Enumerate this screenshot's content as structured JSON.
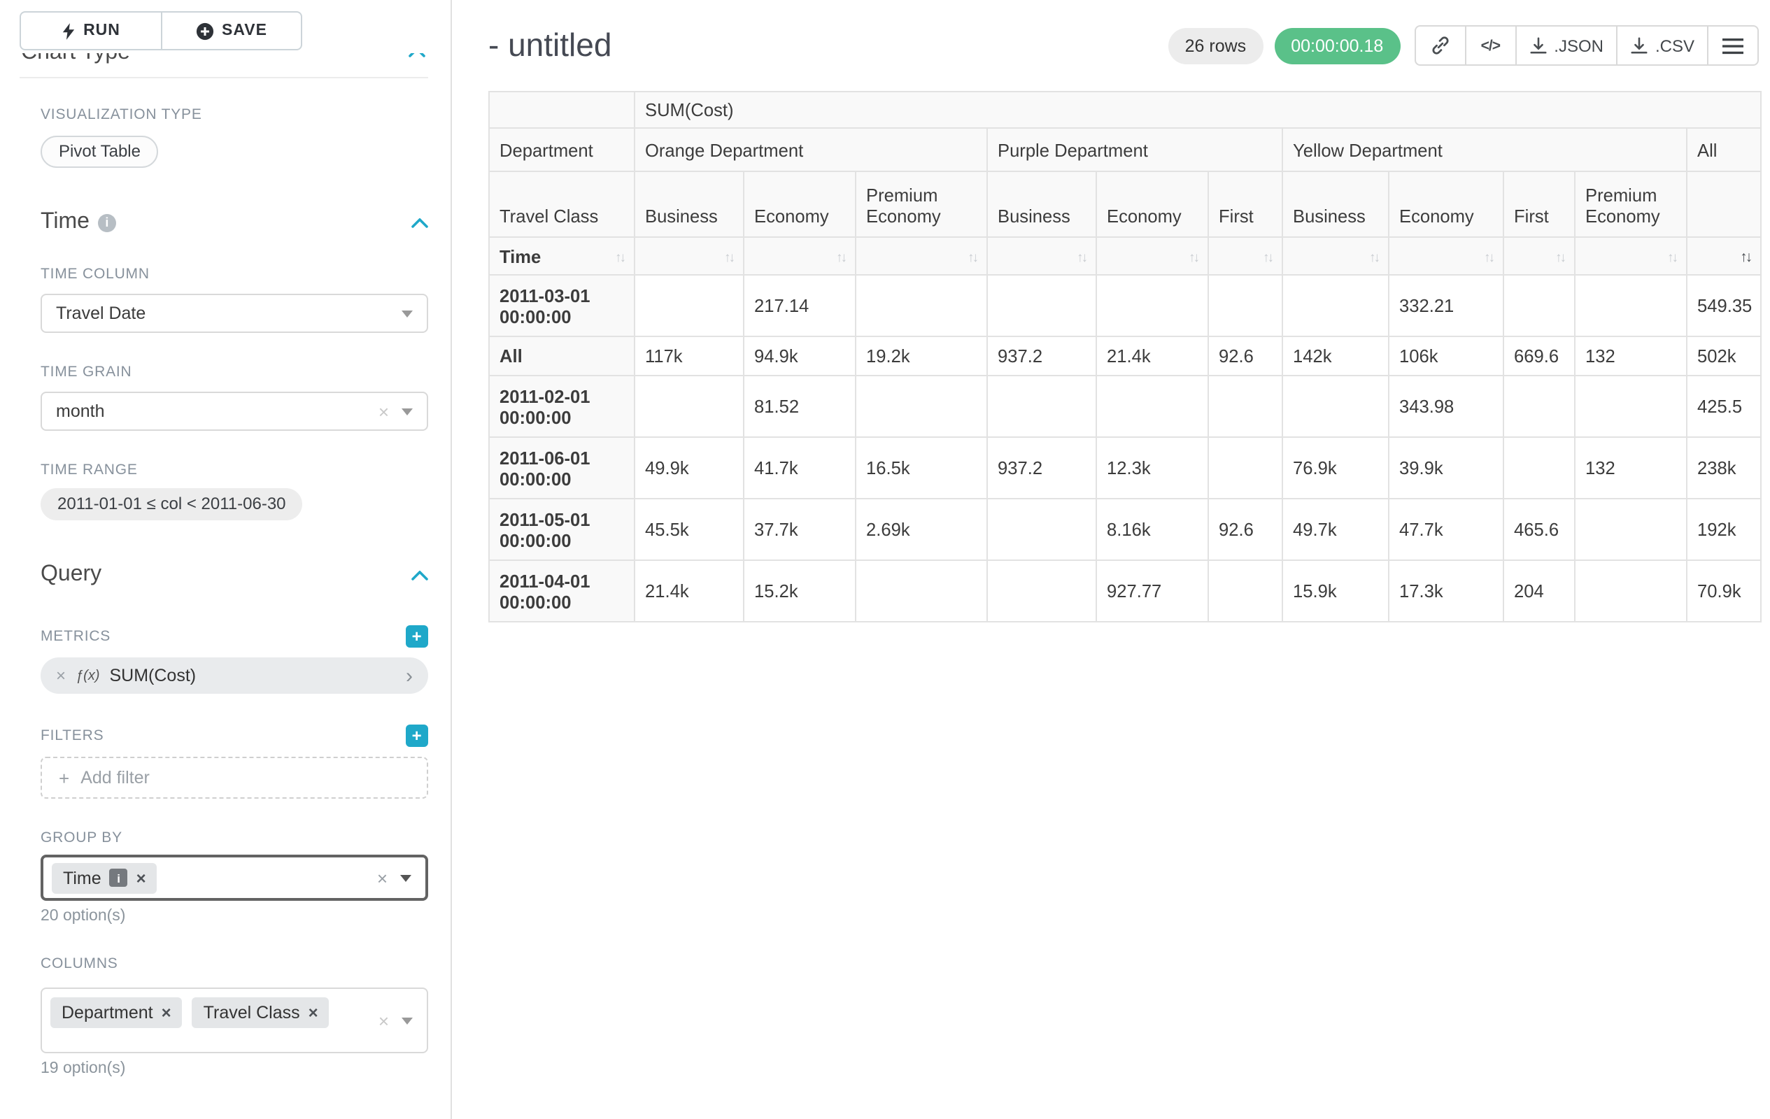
{
  "icons": {
    "info": "i",
    "fn": "ƒ(x)",
    "code": "</>",
    "close": "×",
    "caret_right": "›",
    "plus": "+",
    "sort_up": "↑",
    "sort_down": "↓"
  },
  "sidebar": {
    "run_label": "RUN",
    "save_label": "SAVE",
    "clipped_section_title": "Chart Type",
    "visualization_type_label": "VISUALIZATION TYPE",
    "visualization_type_value": "Pivot Table",
    "time_section": {
      "title": "Time",
      "time_column_label": "TIME COLUMN",
      "time_column_value": "Travel Date",
      "time_grain_label": "TIME GRAIN",
      "time_grain_value": "month",
      "time_range_label": "TIME RANGE",
      "time_range_value": "2011-01-01 ≤ col < 2011-06-30"
    },
    "query_section": {
      "title": "Query",
      "metrics_label": "METRICS",
      "metric_chip": "SUM(Cost)",
      "filters_label": "FILTERS",
      "add_filter_placeholder": "Add filter",
      "group_by_label": "GROUP BY",
      "group_by_chips": [
        "Time"
      ],
      "group_by_options_count": "20 option(s)",
      "columns_label": "COLUMNS",
      "columns_chips": [
        "Department",
        "Travel Class"
      ],
      "columns_options_count": "19 option(s)"
    }
  },
  "header": {
    "title": "- untitled",
    "rows_badge": "26 rows",
    "timer_badge": "00:00:00.18",
    "json_label": ".JSON",
    "csv_label": ".CSV"
  },
  "pivot": {
    "metric_header": "SUM(Cost)",
    "department_label": "Department",
    "travel_class_label": "Travel Class",
    "time_label": "Time",
    "departments": [
      {
        "name": "Orange Department",
        "span": 3
      },
      {
        "name": "Purple Department",
        "span": 3
      },
      {
        "name": "Yellow Department",
        "span": 4
      },
      {
        "name": "All",
        "span": 1
      }
    ],
    "classes": [
      "Business",
      "Economy",
      "Premium Economy",
      "Business",
      "Economy",
      "First",
      "Business",
      "Economy",
      "First",
      "Premium Economy",
      ""
    ],
    "rows": [
      {
        "label": "2011-03-01 00:00:00",
        "values": [
          "",
          "217.14",
          "",
          "",
          "",
          "",
          "",
          "332.21",
          "",
          "",
          "549.35"
        ]
      },
      {
        "label": "All",
        "values": [
          "117k",
          "94.9k",
          "19.2k",
          "937.2",
          "21.4k",
          "92.6",
          "142k",
          "106k",
          "669.6",
          "132",
          "502k"
        ]
      },
      {
        "label": "2011-02-01 00:00:00",
        "values": [
          "",
          "81.52",
          "",
          "",
          "",
          "",
          "",
          "343.98",
          "",
          "",
          "425.5"
        ]
      },
      {
        "label": "2011-06-01 00:00:00",
        "values": [
          "49.9k",
          "41.7k",
          "16.5k",
          "937.2",
          "12.3k",
          "",
          "76.9k",
          "39.9k",
          "",
          "132",
          "238k"
        ]
      },
      {
        "label": "2011-05-01 00:00:00",
        "values": [
          "45.5k",
          "37.7k",
          "2.69k",
          "",
          "8.16k",
          "92.6",
          "49.7k",
          "47.7k",
          "465.6",
          "",
          "192k"
        ]
      },
      {
        "label": "2011-04-01 00:00:00",
        "values": [
          "21.4k",
          "15.2k",
          "",
          "",
          "927.77",
          "",
          "15.9k",
          "17.3k",
          "204",
          "",
          "70.9k"
        ]
      }
    ]
  }
}
